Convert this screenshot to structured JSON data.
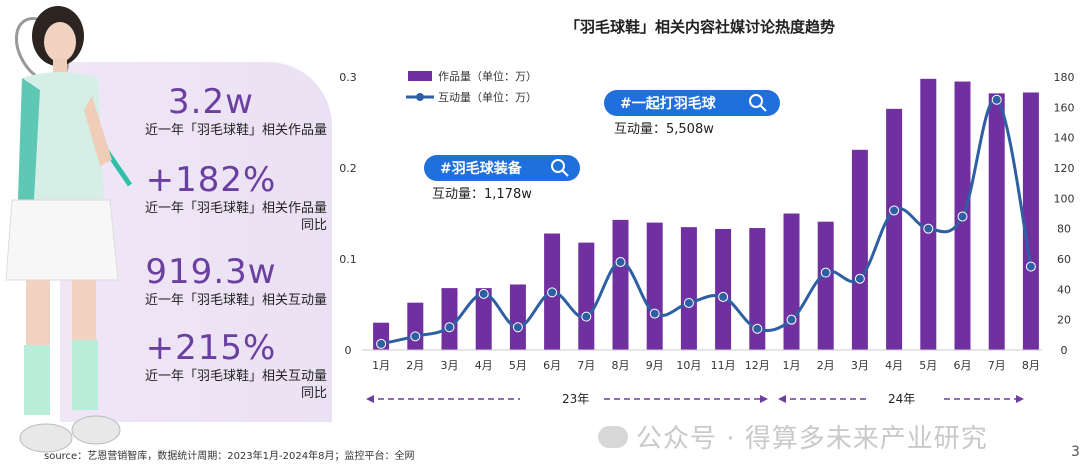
{
  "title": "「羽毛球鞋」相关内容社媒讨论热度趋势",
  "stats": [
    {
      "value": "3.2w",
      "label": "近一年「羽毛球鞋」相关作品量"
    },
    {
      "value": "+182%",
      "label": "近一年「羽毛球鞋」相关作品量",
      "label2": "同比"
    },
    {
      "value": "919.3w",
      "label": "近一年「羽毛球鞋」相关互动量"
    },
    {
      "value": "+215%",
      "label": "近一年「羽毛球鞋」相关互动量",
      "label2": "同比"
    }
  ],
  "chart_data": {
    "type": "bar+line",
    "categories": [
      "1月",
      "2月",
      "3月",
      "4月",
      "5月",
      "6月",
      "7月",
      "8月",
      "9月",
      "10月",
      "11月",
      "12月",
      "1月",
      "2月",
      "3月",
      "4月",
      "5月",
      "6月",
      "7月",
      "8月"
    ],
    "series": [
      {
        "name": "作品量（单位：万）",
        "type": "bar",
        "axis": "left",
        "values": [
          0.03,
          0.052,
          0.068,
          0.068,
          0.072,
          0.128,
          0.118,
          0.143,
          0.14,
          0.135,
          0.133,
          0.134,
          0.15,
          0.141,
          0.22,
          0.265,
          0.298,
          0.295,
          0.282,
          0.283
        ]
      },
      {
        "name": "互动量（单位：万）",
        "type": "line",
        "axis": "right",
        "values": [
          4,
          9,
          15,
          37,
          15,
          38,
          22,
          58,
          24,
          31,
          35,
          14,
          20,
          51,
          47,
          92,
          80,
          88,
          165,
          55
        ]
      }
    ],
    "left_axis": {
      "ticks": [
        "0",
        "0.1",
        "0.2",
        "0.3"
      ],
      "min": 0,
      "max": 0.3
    },
    "right_axis": {
      "ticks": [
        "0",
        "20",
        "40",
        "60",
        "80",
        "100",
        "120",
        "140",
        "160",
        "180"
      ],
      "min": 0,
      "max": 180
    },
    "year_labels": [
      "23年",
      "24年"
    ],
    "callouts": [
      {
        "tag": "#羽毛球装备",
        "text": "互动量：1,178w"
      },
      {
        "tag": "#一起打羽毛球",
        "text": "互动量：5,508w"
      }
    ],
    "colors": {
      "bar": "#7030a0",
      "line": "#2e5fa3",
      "line_point": "#2e5fa3",
      "callout": "#1f6fdc"
    }
  },
  "footer": {
    "source": "source：艺恩营销智库，数据统计周期：2023年1月-2024年8月；监控平台：全网",
    "page": "3",
    "watermark": "公众号 · 得算多未来产业研究"
  }
}
